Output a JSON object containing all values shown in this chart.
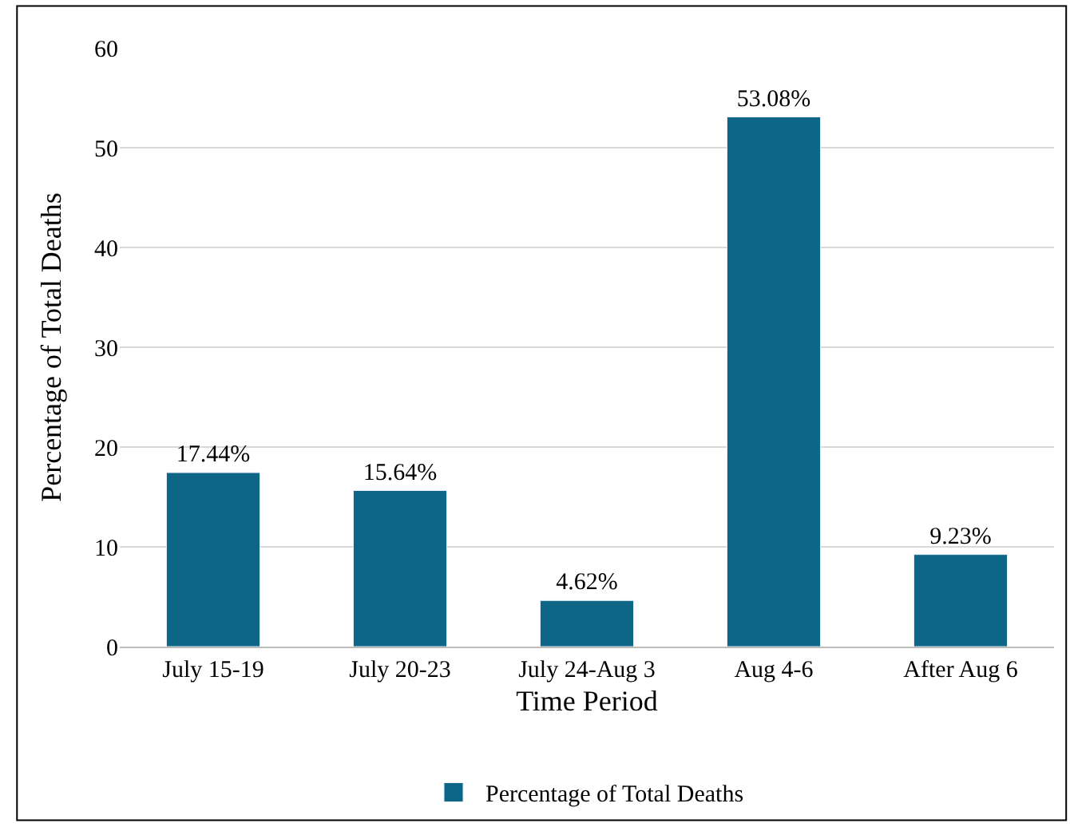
{
  "chart_data": {
    "type": "bar",
    "xlabel": "Time Period",
    "ylabel": "Percentage of Total Deaths",
    "categories": [
      "July 15-19",
      "July 20-23",
      "July 24-Aug 3",
      "Aug 4-6",
      "After Aug 6"
    ],
    "series": [
      {
        "name": "Percentage of Total Deaths",
        "color": "#0e6686",
        "values": [
          17.44,
          15.64,
          4.62,
          53.08,
          9.23
        ],
        "value_labels": [
          "17.44%",
          "15.64%",
          "4.62%",
          "53.08%",
          "9.23%"
        ]
      }
    ],
    "ylim": [
      0,
      60
    ],
    "yticks": [
      0,
      10,
      20,
      30,
      40,
      50,
      60
    ],
    "grid": "y",
    "legend": "bottom"
  }
}
